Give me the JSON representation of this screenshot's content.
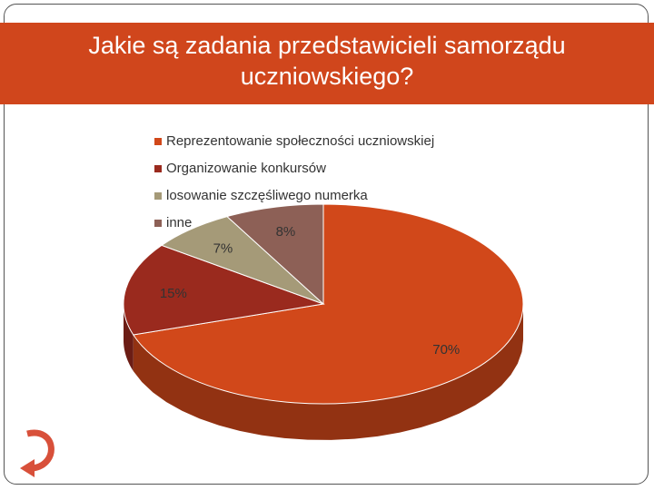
{
  "chart_data": {
    "type": "pie",
    "title": "Jakie są zadania przedstawicieli samorządu uczniowskiego?",
    "categories": [
      "Reprezentowanie społeczności uczniowskiej",
      "Organizowanie konkursów",
      "losowanie szczęśliwego numerka",
      "inne"
    ],
    "values": [
      70,
      15,
      7,
      8
    ],
    "value_labels": [
      "70%",
      "15%",
      "7%",
      "8%"
    ],
    "colors": [
      "#d1481a",
      "#9a2a1e",
      "#a59a78",
      "#8d6056"
    ],
    "legend": "top-left"
  }
}
